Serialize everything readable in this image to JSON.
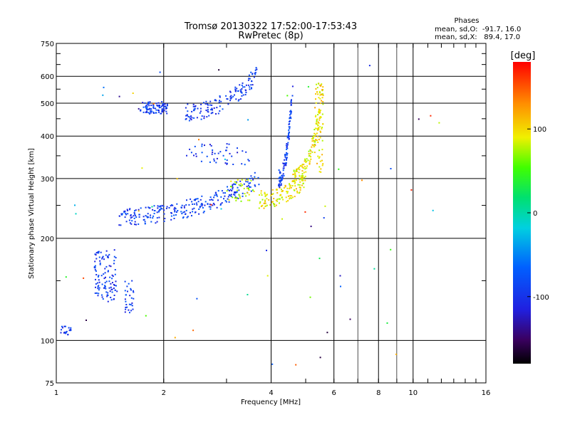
{
  "chart_data": {
    "type": "scatter",
    "title": "Tromsø 20130322 17:52:00-17:53:43",
    "subtitle": "RwPretec (8p)",
    "xlabel": "Frequency [MHz]",
    "ylabel": "Stationary phase Virtual Height [km]",
    "xscale": "log",
    "yscale": "log",
    "xlim": [
      1,
      16
    ],
    "ylim": [
      75,
      750
    ],
    "xticks": [
      1,
      2,
      4,
      6,
      8,
      10,
      16
    ],
    "xtick_labels": [
      "1",
      "2",
      "4",
      "6",
      "8",
      "10",
      "16"
    ],
    "yticks": [
      75,
      100,
      200,
      300,
      400,
      500,
      600,
      750
    ],
    "ytick_labels": [
      "75",
      "100",
      "200",
      "300",
      "400",
      "500",
      "600",
      "750"
    ],
    "grid": true,
    "stats": {
      "heading": "Phases",
      "line_o": "mean, sd,O:  -91.7, 16.0",
      "line_x": "mean, sd,X:   89.4, 17.0"
    },
    "colorbar": {
      "label": "[deg]",
      "range": [
        -180,
        180
      ],
      "ticks": [
        100,
        0,
        -100
      ],
      "tick_labels": [
        "100",
        "0",
        "-100"
      ],
      "colormap": "rainbow"
    },
    "clusters": [
      {
        "f_range": [
          1.72,
          2.05
        ],
        "h_range": [
          465,
          505
        ],
        "phase": -95,
        "count": 90
      },
      {
        "f_range": [
          2.3,
          3.65
        ],
        "h_range": [
          470,
          610
        ],
        "trend": "rising",
        "phase": -95,
        "count": 140
      },
      {
        "f_range": [
          1.5,
          3.7
        ],
        "h_range": [
          232,
          300
        ],
        "trend": "rising",
        "phase": -90,
        "count": 260
      },
      {
        "f_range": [
          3.7,
          5.0
        ],
        "h_range": [
          260,
          300
        ],
        "trend": "rising",
        "phase": 95,
        "count": 120
      },
      {
        "f_range": [
          4.2,
          4.6
        ],
        "h_range": [
          300,
          560
        ],
        "trend": "rising",
        "phase": -90,
        "count": 110
      },
      {
        "f_range": [
          4.6,
          5.5
        ],
        "h_range": [
          300,
          480
        ],
        "trend": "rising",
        "phase": 92,
        "count": 120
      },
      {
        "f_range": [
          5.3,
          5.6
        ],
        "h_range": [
          310,
          580
        ],
        "phase": 100,
        "count": 80
      },
      {
        "f_range": [
          2.3,
          3.5
        ],
        "h_range": [
          330,
          380
        ],
        "phase": -95,
        "count": 45
      },
      {
        "f_range": [
          3.0,
          3.6
        ],
        "h_range": [
          255,
          300
        ],
        "phase": 80,
        "count": 40
      },
      {
        "f_range": [
          1.28,
          1.48
        ],
        "h_range": [
          130,
          185
        ],
        "phase": -95,
        "count": 110
      },
      {
        "f_range": [
          1.55,
          1.65
        ],
        "h_range": [
          120,
          150
        ],
        "phase": -95,
        "count": 30
      },
      {
        "f_range": [
          1.02,
          1.1
        ],
        "h_range": [
          104,
          110
        ],
        "phase": -95,
        "count": 20
      },
      {
        "f_range": [
          1.0,
          12.0
        ],
        "h_range": [
          80,
          650
        ],
        "phase": 0,
        "count": 60,
        "sparse": true
      }
    ]
  }
}
